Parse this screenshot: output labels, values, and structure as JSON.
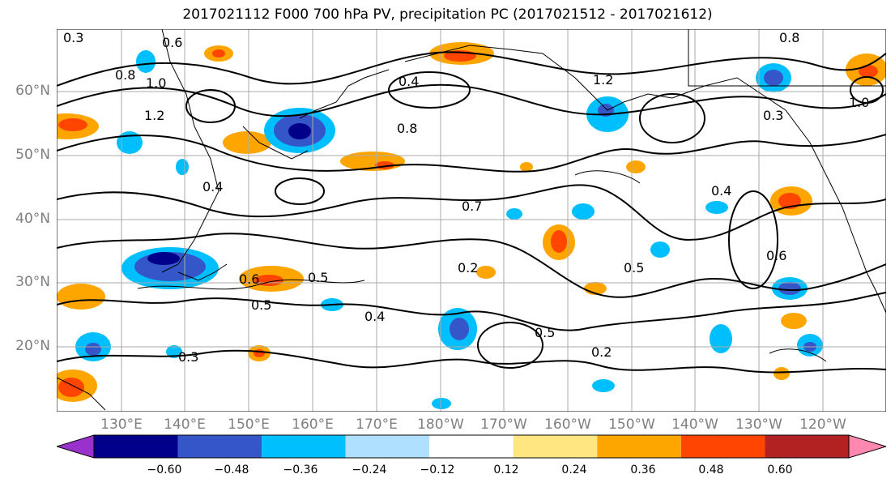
{
  "title": "2017021112 F000 700 hPa PV, precipitation PC (2017021512 - 2017021612)",
  "lat_labels": [
    "60°N",
    "50°N",
    "40°N",
    "30°N",
    "20°N"
  ],
  "lon_labels": [
    "130°E",
    "140°E",
    "150°E",
    "160°E",
    "170°E",
    "180°W",
    "170°W",
    "160°W",
    "150°W",
    "140°W",
    "130°W",
    "120°W"
  ],
  "contour_labels": [
    "0.3",
    "0.6",
    "0.8",
    "1.0",
    "1.2",
    "0.4",
    "0.8",
    "0.7",
    "0.5",
    "0.6",
    "0.5",
    "0.4",
    "0.2",
    "0.5",
    "0.2",
    "0.6",
    "0.4",
    "0.8",
    "0.3",
    "1.0",
    "1.2",
    "0.3",
    "0.4",
    "0.5"
  ],
  "colorbar": {
    "ticks": [
      "−0.60",
      "−0.48",
      "−0.36",
      "−0.24",
      "−0.12",
      "0.12",
      "0.24",
      "0.36",
      "0.48",
      "0.60"
    ],
    "colors": [
      "#9932cc",
      "#00008b",
      "#3456c8",
      "#00bfff",
      "#b0e0ff",
      "#ffffff",
      "#ffe680",
      "#ffa500",
      "#ff4500",
      "#b22222",
      "#ff88b0"
    ]
  }
}
